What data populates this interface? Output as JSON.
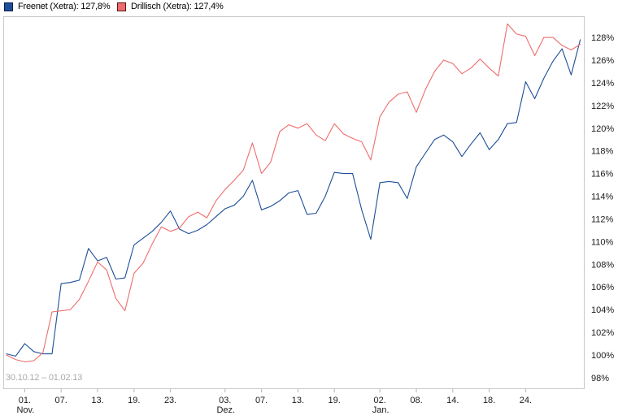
{
  "legend": {
    "items": [
      {
        "label": "Freenet (Xetra): 127,8%",
        "color": "#1d4e97",
        "border": "#0b1e4d"
      },
      {
        "label": "Drillisch (Xetra): 127,4%",
        "color": "#ed6d6d",
        "border": "#5c1414"
      }
    ]
  },
  "footer": {
    "date_range": "30.10.12 – 01.02.13"
  },
  "chart_data": {
    "type": "line",
    "title": "",
    "date_range": "30.10.12 – 01.02.13",
    "grid": false,
    "legend_position": "top-left",
    "x_axis": {
      "unit": "trading days from 30.10.12 to 01.02.13",
      "num_points": 64,
      "ticks": [
        {
          "day": 2,
          "label": "01.",
          "month": "Nov."
        },
        {
          "day": 6,
          "label": "07."
        },
        {
          "day": 10,
          "label": "13."
        },
        {
          "day": 14,
          "label": "19."
        },
        {
          "day": 18,
          "label": "23."
        },
        {
          "day": 24,
          "label": "03.",
          "month": "Dez."
        },
        {
          "day": 28,
          "label": "07."
        },
        {
          "day": 32,
          "label": "13."
        },
        {
          "day": 36,
          "label": "19."
        },
        {
          "day": 41,
          "label": "02.",
          "month": "Jan."
        },
        {
          "day": 45,
          "label": "08."
        },
        {
          "day": 49,
          "label": "14."
        },
        {
          "day": 53,
          "label": "18."
        },
        {
          "day": 57,
          "label": "24."
        }
      ]
    },
    "y_axis": {
      "side": "right",
      "suffix": "%",
      "ticks": [
        98,
        100,
        102,
        104,
        106,
        108,
        110,
        112,
        114,
        116,
        118,
        120,
        122,
        124,
        126,
        128
      ],
      "range": [
        97.0,
        129.9
      ]
    },
    "series": [
      {
        "name": "Freenet (Xetra)",
        "final_label": "127,8%",
        "color": "#1d4e97",
        "values": [
          100.1,
          99.9,
          101.0,
          100.3,
          100.1,
          100.1,
          106.3,
          106.4,
          106.6,
          109.4,
          108.3,
          108.6,
          106.7,
          106.8,
          109.7,
          110.3,
          110.9,
          111.7,
          112.7,
          111.1,
          110.7,
          111.0,
          111.5,
          112.2,
          112.9,
          113.2,
          114.0,
          115.4,
          112.8,
          113.1,
          113.6,
          114.3,
          114.5,
          112.4,
          112.5,
          114.0,
          116.1,
          116.0,
          116.0,
          112.8,
          110.2,
          115.2,
          115.3,
          115.2,
          113.8,
          116.6,
          117.8,
          119.0,
          119.4,
          118.8,
          117.5,
          118.6,
          119.6,
          118.1,
          119.0,
          120.4,
          120.5,
          124.1,
          122.6,
          124.4,
          125.9,
          127.0,
          124.7,
          127.8
        ]
      },
      {
        "name": "Drillisch (Xetra)",
        "final_label": "127,4%",
        "color": "#ed6d6d",
        "values": [
          100.0,
          99.6,
          99.4,
          99.5,
          100.2,
          103.8,
          103.9,
          104.0,
          104.9,
          106.5,
          108.2,
          107.5,
          105.0,
          103.9,
          107.2,
          108.1,
          109.8,
          111.3,
          110.9,
          111.2,
          112.2,
          112.6,
          112.1,
          113.6,
          114.6,
          115.4,
          116.3,
          118.7,
          116.0,
          117.0,
          119.7,
          120.3,
          120.0,
          120.4,
          119.4,
          118.9,
          120.4,
          119.5,
          119.1,
          118.8,
          117.2,
          121.0,
          122.3,
          123.0,
          123.2,
          121.4,
          123.4,
          125.0,
          126.0,
          125.7,
          124.8,
          125.3,
          126.1,
          125.3,
          124.6,
          129.2,
          128.3,
          128.1,
          126.4,
          128.0,
          128.0,
          127.3,
          126.9,
          127.4
        ]
      }
    ]
  }
}
